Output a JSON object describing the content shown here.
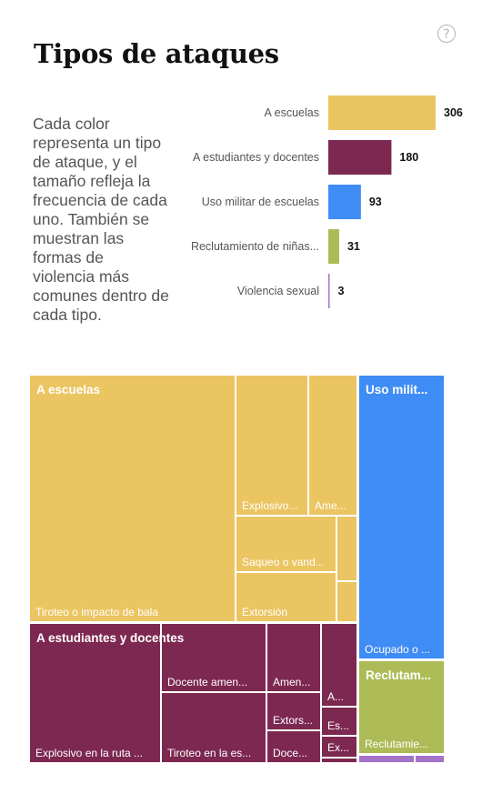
{
  "title": "Tipos de ataques",
  "description": "Cada color representa un tipo de ataque, y el tamaño refleja la frecuencia de cada uno. También se muestran las formas de violencia más comunes dentro de cada tipo.",
  "help_icon": "question-circle-icon",
  "colors": {
    "escuelas": "#ebc562",
    "estudiantes": "#7d2850",
    "militar": "#3f8cf5",
    "reclutamiento": "#adbb56",
    "violencia": "#a373c8"
  },
  "chart_data": [
    {
      "type": "bar",
      "orientation": "horizontal",
      "categories": [
        "A escuelas",
        "A estudiantes y docentes",
        "Uso militar de escuelas",
        "Reclutamiento de niñas...",
        "Violencia sexual"
      ],
      "values": [
        306,
        180,
        93,
        31,
        3
      ],
      "colors": [
        "#ebc562",
        "#7d2850",
        "#3f8cf5",
        "#adbb56",
        "#a373c8"
      ]
    },
    {
      "type": "treemap",
      "groups": [
        {
          "name": "A escuelas",
          "color": "#ebc562",
          "children": [
            "Tiroteo o impacto de bala",
            "Explosivo...",
            "Ame...",
            "Saqueo o vand...",
            "Extorsión",
            "",
            "",
            ""
          ]
        },
        {
          "name": "A estudiantes y docentes",
          "color": "#7d2850",
          "children": [
            "Explosivo en la ruta ...",
            "Docente amen...",
            "Tiroteo en la es...",
            "Amen...",
            "A...",
            "Extors...",
            "Es...",
            "Doce...",
            "Ex...",
            ""
          ]
        },
        {
          "name": "Uso milit...",
          "color": "#3f8cf5",
          "children": [
            "Ocupado o ..."
          ]
        },
        {
          "name": "Reclutam...",
          "color": "#adbb56",
          "children": [
            "Reclutamie..."
          ]
        },
        {
          "name": "",
          "color": "#a373c8",
          "children": [
            "",
            ""
          ]
        }
      ]
    }
  ]
}
